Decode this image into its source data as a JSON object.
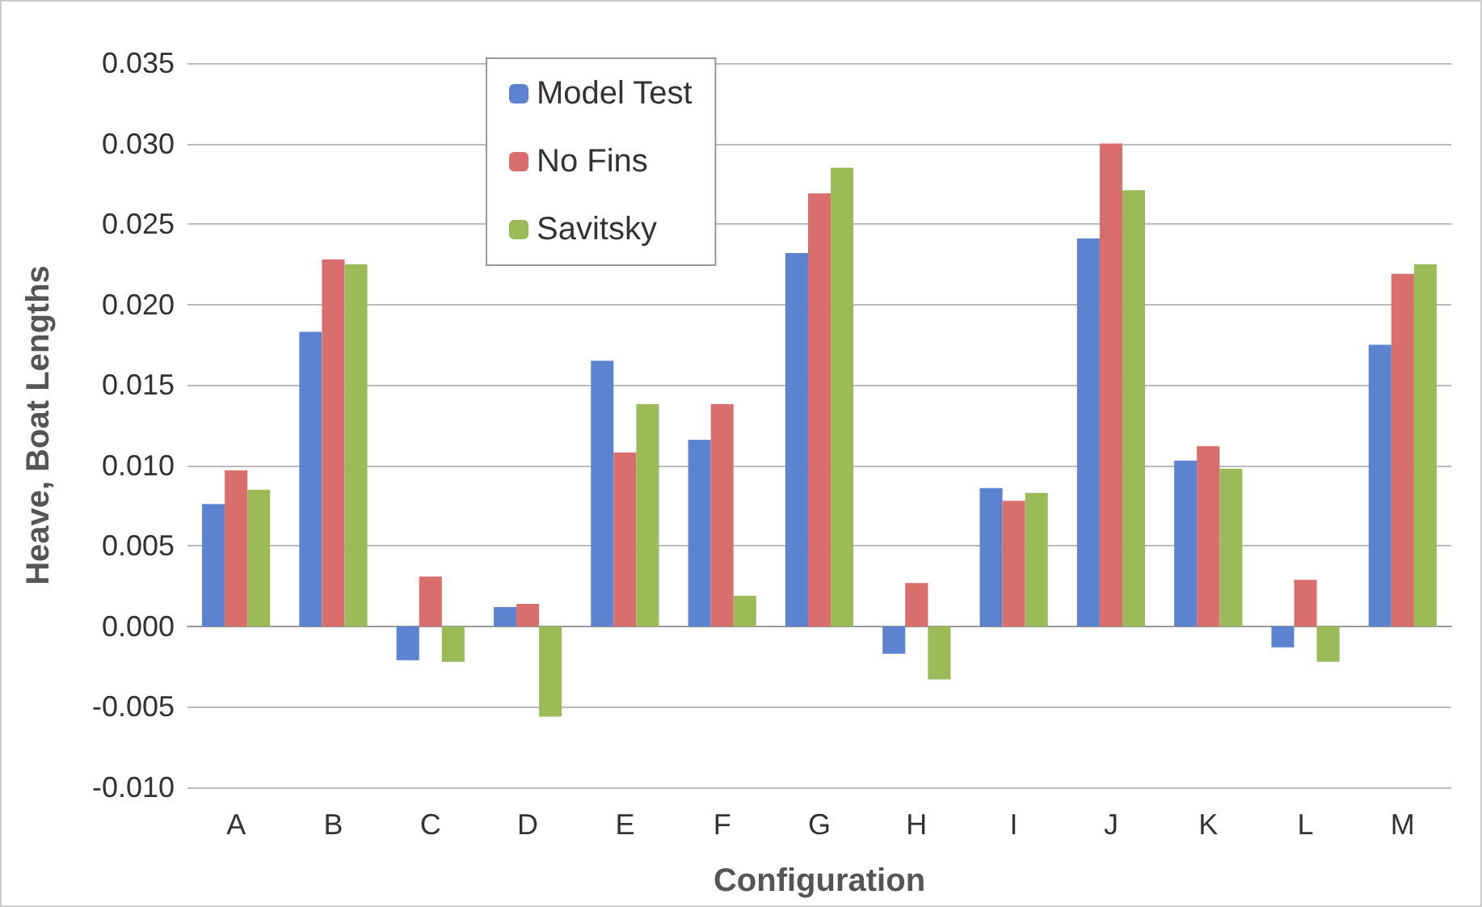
{
  "chart_data": {
    "type": "bar",
    "xlabel": "Configuration",
    "ylabel": "Heave, Boat Lengths",
    "categories": [
      "A",
      "B",
      "C",
      "D",
      "E",
      "F",
      "G",
      "H",
      "I",
      "J",
      "K",
      "L",
      "M"
    ],
    "series": [
      {
        "name": "Model Test",
        "color": "#5b83cf",
        "values": [
          0.0076,
          0.0183,
          -0.0021,
          0.0012,
          0.0165,
          0.0116,
          0.0232,
          -0.0017,
          0.0086,
          0.0241,
          0.0103,
          -0.0013,
          0.0175
        ]
      },
      {
        "name": "No Fins",
        "color": "#d96f6c",
        "values": [
          0.0097,
          0.0228,
          0.0031,
          0.0014,
          0.0108,
          0.0138,
          0.0269,
          0.0027,
          0.0078,
          0.03,
          0.0112,
          0.0029,
          0.0219
        ]
      },
      {
        "name": "Savitsky",
        "color": "#9bbb59",
        "values": [
          0.0085,
          0.0225,
          -0.0022,
          -0.0056,
          0.0138,
          0.0019,
          0.0285,
          -0.0033,
          0.0083,
          0.0271,
          0.0098,
          -0.0022,
          0.0225
        ]
      }
    ],
    "ylim": [
      -0.01,
      0.035
    ],
    "yticks": [
      {
        "value": -0.01,
        "label": "-0.010"
      },
      {
        "value": -0.005,
        "label": "-0.005"
      },
      {
        "value": 0,
        "label": "0.000"
      },
      {
        "value": 0.005,
        "label": "0.005"
      },
      {
        "value": 0.01,
        "label": "0.010"
      },
      {
        "value": 0.015,
        "label": "0.015"
      },
      {
        "value": 0.02,
        "label": "0.020"
      },
      {
        "value": 0.025,
        "label": "0.025"
      },
      {
        "value": 0.03,
        "label": "0.030"
      },
      {
        "value": 0.035,
        "label": "0.035"
      }
    ],
    "grid": "y",
    "legend": "top"
  }
}
